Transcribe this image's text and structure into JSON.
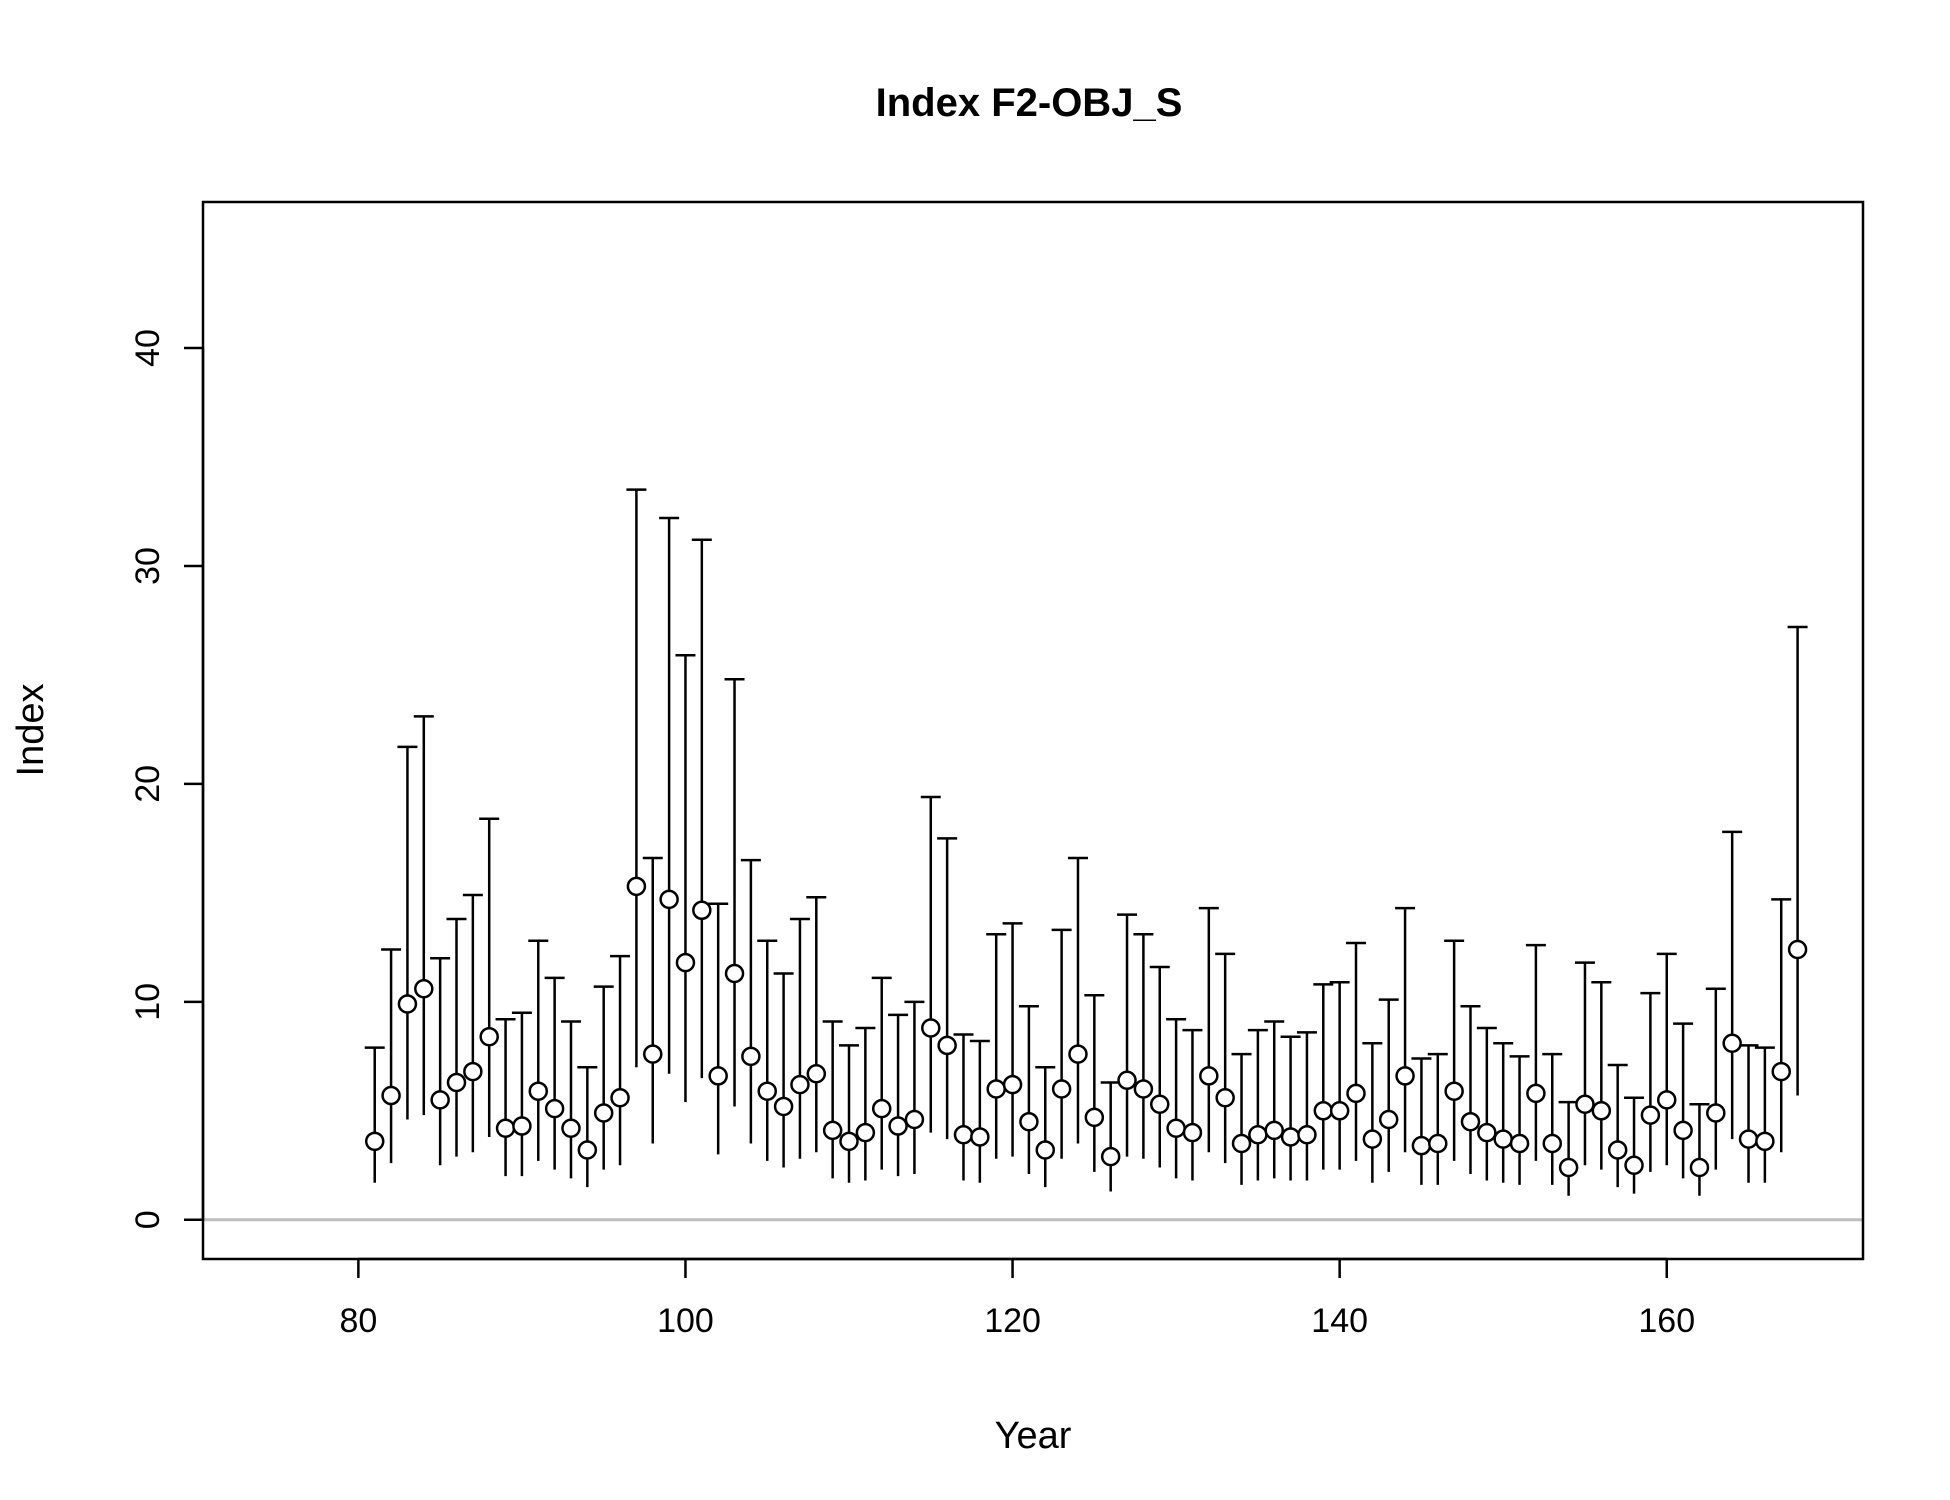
{
  "chart_data": {
    "type": "scatter",
    "title": "Index F2-OBJ_S",
    "xlabel": "Year",
    "ylabel": "Index",
    "xlim": [
      70.5,
      172
    ],
    "ylim": [
      -1.8,
      46.7
    ],
    "xticks": [
      80,
      100,
      120,
      140,
      160
    ],
    "yticks": [
      0,
      10,
      20,
      30,
      40
    ],
    "reference_line": {
      "y": 0,
      "color": "#bebebe"
    },
    "grid": false,
    "legend": "none",
    "marker": "open circle",
    "error_bars": "vertical interval with cap at top only",
    "series": [
      {
        "x": [
          81,
          82,
          83,
          84,
          85,
          86,
          87,
          88,
          89,
          90,
          91,
          92,
          93,
          94,
          95,
          96,
          97,
          98,
          99,
          100,
          101,
          102,
          103,
          104,
          105,
          106,
          107,
          108,
          109,
          110,
          111,
          112,
          113,
          114,
          115,
          116,
          117,
          118,
          119,
          120,
          121,
          122,
          123,
          124,
          125,
          126,
          127,
          128,
          129,
          130,
          131,
          132,
          133,
          134,
          135,
          136,
          137,
          138,
          139,
          140,
          141,
          142,
          143,
          144,
          145,
          146,
          147,
          148,
          149,
          150,
          151,
          152,
          153,
          154,
          155,
          156,
          157,
          158,
          159,
          160,
          161,
          162,
          163,
          164,
          165,
          166,
          167,
          168
        ],
        "y": [
          3.6,
          5.7,
          9.9,
          10.6,
          5.5,
          6.3,
          6.8,
          8.4,
          4.2,
          4.3,
          5.9,
          5.1,
          4.2,
          3.2,
          4.9,
          5.6,
          15.3,
          7.6,
          14.7,
          11.8,
          14.2,
          6.6,
          11.3,
          7.5,
          5.9,
          5.2,
          6.2,
          6.7,
          4.1,
          3.6,
          4.0,
          5.1,
          4.3,
          4.6,
          8.8,
          8.0,
          3.9,
          3.8,
          6.0,
          6.2,
          4.5,
          3.2,
          6.0,
          7.6,
          4.7,
          2.9,
          6.4,
          6.0,
          5.3,
          4.2,
          4.0,
          6.6,
          5.6,
          3.5,
          3.9,
          4.1,
          3.8,
          3.9,
          5.0,
          5.0,
          5.8,
          3.7,
          4.6,
          6.6,
          3.4,
          3.5,
          5.9,
          4.5,
          4.0,
          3.7,
          3.5,
          5.8,
          3.5,
          2.4,
          5.3,
          5.0,
          3.2,
          2.5,
          4.8,
          5.5,
          4.1,
          2.4,
          4.9,
          8.1,
          3.7,
          3.6,
          6.8,
          12.4
        ],
        "lower": [
          1.7,
          2.6,
          4.6,
          4.8,
          2.5,
          2.9,
          3.1,
          3.8,
          2.0,
          2.0,
          2.7,
          2.3,
          1.9,
          1.5,
          2.3,
          2.5,
          7.0,
          3.5,
          6.7,
          5.4,
          6.5,
          3.0,
          5.2,
          3.5,
          2.7,
          2.4,
          2.8,
          3.1,
          1.9,
          1.7,
          1.8,
          2.3,
          2.0,
          2.1,
          4.0,
          3.7,
          1.8,
          1.7,
          2.8,
          2.9,
          2.1,
          1.5,
          2.8,
          3.5,
          2.2,
          1.3,
          2.9,
          2.8,
          2.4,
          1.9,
          1.8,
          3.1,
          2.6,
          1.6,
          1.8,
          1.9,
          1.8,
          1.8,
          2.3,
          2.3,
          2.7,
          1.7,
          2.2,
          3.1,
          1.6,
          1.6,
          2.7,
          2.1,
          1.8,
          1.7,
          1.6,
          2.7,
          1.6,
          1.1,
          2.5,
          2.3,
          1.5,
          1.2,
          2.2,
          2.5,
          1.9,
          1.1,
          2.3,
          3.7,
          1.7,
          1.7,
          3.1,
          5.7
        ],
        "upper": [
          7.9,
          12.4,
          21.7,
          23.1,
          12.0,
          13.8,
          14.9,
          18.4,
          9.2,
          9.5,
          12.8,
          11.1,
          9.1,
          7.0,
          10.7,
          12.1,
          33.5,
          16.6,
          32.2,
          25.9,
          31.2,
          14.5,
          24.8,
          16.5,
          12.8,
          11.3,
          13.8,
          14.8,
          9.1,
          8.0,
          8.8,
          11.1,
          9.4,
          10.0,
          19.4,
          17.5,
          8.5,
          8.2,
          13.1,
          13.6,
          9.8,
          7.0,
          13.3,
          16.6,
          10.3,
          6.3,
          14.0,
          13.1,
          11.6,
          9.2,
          8.7,
          14.3,
          12.2,
          7.6,
          8.7,
          9.1,
          8.4,
          8.6,
          10.8,
          10.9,
          12.7,
          8.1,
          10.1,
          14.3,
          7.4,
          7.6,
          12.8,
          9.8,
          8.8,
          8.1,
          7.5,
          12.6,
          7.6,
          5.4,
          11.8,
          10.9,
          7.1,
          5.6,
          10.4,
          12.2,
          9.0,
          5.3,
          10.6,
          17.8,
          8.0,
          7.9,
          14.7,
          27.2
        ]
      }
    ]
  }
}
